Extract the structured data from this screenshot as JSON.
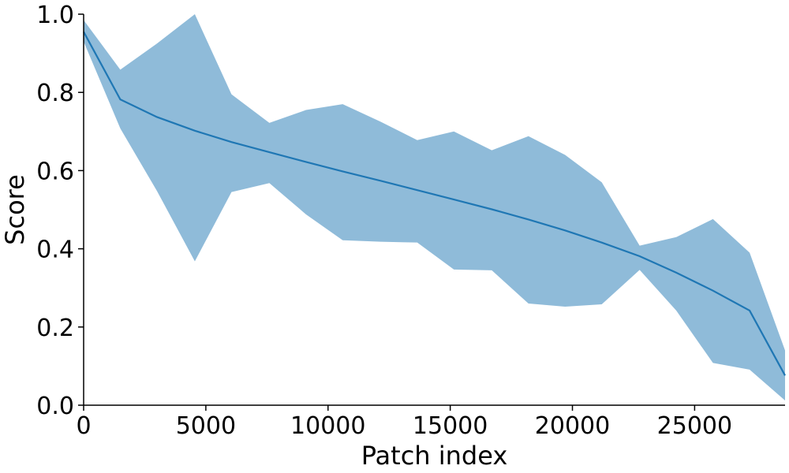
{
  "chart_data": {
    "type": "line",
    "xlabel": "Patch index",
    "ylabel": "Score",
    "xlim": [
      0,
      28700
    ],
    "ylim": [
      0.0,
      1.0
    ],
    "x_ticks": [
      0,
      5000,
      10000,
      15000,
      20000,
      25000
    ],
    "x_tick_labels": [
      "0",
      "5000",
      "10000",
      "15000",
      "20000",
      "25000"
    ],
    "y_ticks": [
      0.0,
      0.2,
      0.4,
      0.6,
      0.8,
      1.0
    ],
    "y_tick_labels": [
      "0.0",
      "0.2",
      "0.4",
      "0.6",
      "0.8",
      "1.0"
    ],
    "grid": false,
    "colors": {
      "line": "#1f77b4",
      "band": "#1f77b4",
      "band_opacity": 0.5
    },
    "x": [
      0,
      1500,
      3000,
      4550,
      6050,
      7600,
      9100,
      10600,
      12150,
      13650,
      15150,
      16700,
      18200,
      19700,
      21200,
      22750,
      24250,
      25750,
      27250,
      28700
    ],
    "series": [
      {
        "values": [
          0.955,
          0.782,
          0.737,
          0.702,
          0.673,
          0.647,
          0.622,
          0.598,
          0.574,
          0.55,
          0.526,
          0.501,
          0.475,
          0.447,
          0.416,
          0.381,
          0.339,
          0.293,
          0.242,
          0.076
        ],
        "band_upper": [
          0.985,
          0.858,
          0.925,
          1.0,
          0.795,
          0.722,
          0.755,
          0.77,
          0.725,
          0.678,
          0.7,
          0.652,
          0.688,
          0.64,
          0.57,
          0.408,
          0.43,
          0.476,
          0.39,
          0.14
        ],
        "band_lower": [
          0.93,
          0.708,
          0.548,
          0.368,
          0.545,
          0.568,
          0.488,
          0.422,
          0.418,
          0.416,
          0.347,
          0.345,
          0.26,
          0.252,
          0.258,
          0.346,
          0.242,
          0.108,
          0.091,
          0.012
        ]
      }
    ]
  }
}
